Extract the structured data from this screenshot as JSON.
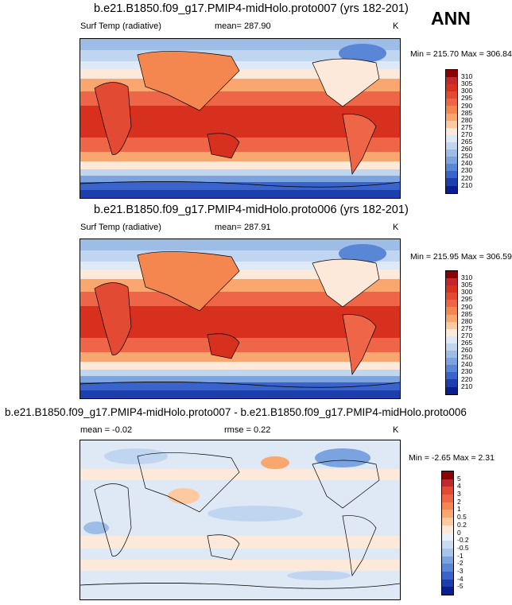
{
  "season": "ANN",
  "panels": [
    {
      "title": "b.e21.B1850.f09_g17.PMIP4-midHolo.proto007 (yrs 182-201)",
      "variable": "Surf Temp (radiative)",
      "stat": "mean= 287.90",
      "units": "K",
      "minmax": "Min = 215.70 Max = 306.84",
      "colorbar_labels": [
        "310",
        "305",
        "300",
        "295",
        "290",
        "285",
        "280",
        "275",
        "270",
        "265",
        "260",
        "250",
        "240",
        "230",
        "220",
        "210"
      ],
      "colorbar_colors": [
        "#8b0000",
        "#c1272d",
        "#d7301f",
        "#e34a33",
        "#ef6548",
        "#f4874f",
        "#f9a66f",
        "#fcc9a0",
        "#fde9d9",
        "#dfe9f6",
        "#c0d5ef",
        "#9dbde6",
        "#7aa3df",
        "#5a86d6",
        "#3a63cb",
        "#1d3fae",
        "#0a1f8f"
      ]
    },
    {
      "title": "b.e21.B1850.f09_g17.PMIP4-midHolo.proto006 (yrs 182-201)",
      "variable": "Surf Temp (radiative)",
      "stat": "mean= 287.91",
      "units": "K",
      "minmax": "Min = 215.95 Max = 306.59",
      "colorbar_labels": [
        "310",
        "305",
        "300",
        "295",
        "290",
        "285",
        "280",
        "275",
        "270",
        "265",
        "260",
        "250",
        "240",
        "230",
        "220",
        "210"
      ],
      "colorbar_colors": [
        "#8b0000",
        "#c1272d",
        "#d7301f",
        "#e34a33",
        "#ef6548",
        "#f4874f",
        "#f9a66f",
        "#fcc9a0",
        "#fde9d9",
        "#dfe9f6",
        "#c0d5ef",
        "#9dbde6",
        "#7aa3df",
        "#5a86d6",
        "#3a63cb",
        "#1d3fae",
        "#0a1f8f"
      ]
    },
    {
      "title": "b.e21.B1850.f09_g17.PMIP4-midHolo.proto007 - b.e21.B1850.f09_g17.PMIP4-midHolo.proto006",
      "stat": "mean =  -0.02",
      "rmse": "rmse =   0.22",
      "units": "K",
      "minmax": "Min =  -2.65 Max =   2.31",
      "colorbar_labels": [
        "5",
        "4",
        "3",
        "2",
        "1",
        "0.5",
        "0.2",
        "0",
        "-0.2",
        "-0.5",
        "-1",
        "-2",
        "-3",
        "-4",
        "-5"
      ],
      "colorbar_colors": [
        "#8b0000",
        "#c1272d",
        "#e34a33",
        "#ef6548",
        "#f4874f",
        "#f9a66f",
        "#fcc9a0",
        "#fde9d9",
        "#eaf1fa",
        "#c9dbf1",
        "#a9c4ea",
        "#7aa3df",
        "#5a86d6",
        "#3a63cb",
        "#1d3fae",
        "#0a1f8f"
      ]
    }
  ]
}
